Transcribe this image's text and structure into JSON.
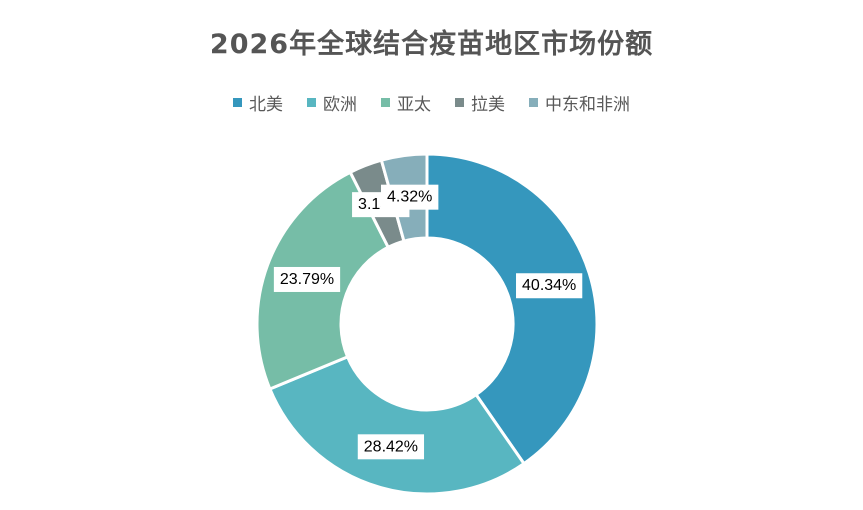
{
  "chart_data": {
    "type": "pie",
    "variant": "donut",
    "title": "2026年全球结合疫苗地区市场份额",
    "legend_position": "top",
    "categories": [
      "北美",
      "欧洲",
      "亚太",
      "拉美",
      "中东和非洲"
    ],
    "values": [
      40.34,
      28.42,
      23.79,
      3.13,
      4.32
    ],
    "data_labels": [
      "40.34%",
      "28.42%",
      "23.79%",
      "3.13%",
      "4.32%"
    ],
    "colors": [
      "#3597BD",
      "#58B6C1",
      "#76BDA7",
      "#7A8B8B",
      "#86AEBA"
    ]
  }
}
